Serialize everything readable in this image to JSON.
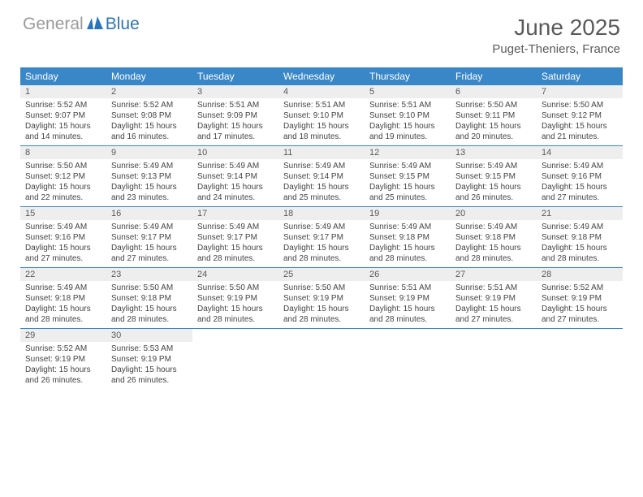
{
  "logo": {
    "word1": "General",
    "word2": "Blue",
    "icon_color": "#2a74b8",
    "text_gray": "#9a9a9a"
  },
  "title": "June 2025",
  "location": "Puget-Theniers, France",
  "header_bg": "#3a87c8",
  "daynum_bg": "#eeeeee",
  "border_color": "#3a87c8",
  "day_names": [
    "Sunday",
    "Monday",
    "Tuesday",
    "Wednesday",
    "Thursday",
    "Friday",
    "Saturday"
  ],
  "days": [
    {
      "n": "1",
      "sr": "5:52 AM",
      "ss": "9:07 PM",
      "dl": "15 hours and 14 minutes."
    },
    {
      "n": "2",
      "sr": "5:52 AM",
      "ss": "9:08 PM",
      "dl": "15 hours and 16 minutes."
    },
    {
      "n": "3",
      "sr": "5:51 AM",
      "ss": "9:09 PM",
      "dl": "15 hours and 17 minutes."
    },
    {
      "n": "4",
      "sr": "5:51 AM",
      "ss": "9:10 PM",
      "dl": "15 hours and 18 minutes."
    },
    {
      "n": "5",
      "sr": "5:51 AM",
      "ss": "9:10 PM",
      "dl": "15 hours and 19 minutes."
    },
    {
      "n": "6",
      "sr": "5:50 AM",
      "ss": "9:11 PM",
      "dl": "15 hours and 20 minutes."
    },
    {
      "n": "7",
      "sr": "5:50 AM",
      "ss": "9:12 PM",
      "dl": "15 hours and 21 minutes."
    },
    {
      "n": "8",
      "sr": "5:50 AM",
      "ss": "9:12 PM",
      "dl": "15 hours and 22 minutes."
    },
    {
      "n": "9",
      "sr": "5:49 AM",
      "ss": "9:13 PM",
      "dl": "15 hours and 23 minutes."
    },
    {
      "n": "10",
      "sr": "5:49 AM",
      "ss": "9:14 PM",
      "dl": "15 hours and 24 minutes."
    },
    {
      "n": "11",
      "sr": "5:49 AM",
      "ss": "9:14 PM",
      "dl": "15 hours and 25 minutes."
    },
    {
      "n": "12",
      "sr": "5:49 AM",
      "ss": "9:15 PM",
      "dl": "15 hours and 25 minutes."
    },
    {
      "n": "13",
      "sr": "5:49 AM",
      "ss": "9:15 PM",
      "dl": "15 hours and 26 minutes."
    },
    {
      "n": "14",
      "sr": "5:49 AM",
      "ss": "9:16 PM",
      "dl": "15 hours and 27 minutes."
    },
    {
      "n": "15",
      "sr": "5:49 AM",
      "ss": "9:16 PM",
      "dl": "15 hours and 27 minutes."
    },
    {
      "n": "16",
      "sr": "5:49 AM",
      "ss": "9:17 PM",
      "dl": "15 hours and 27 minutes."
    },
    {
      "n": "17",
      "sr": "5:49 AM",
      "ss": "9:17 PM",
      "dl": "15 hours and 28 minutes."
    },
    {
      "n": "18",
      "sr": "5:49 AM",
      "ss": "9:17 PM",
      "dl": "15 hours and 28 minutes."
    },
    {
      "n": "19",
      "sr": "5:49 AM",
      "ss": "9:18 PM",
      "dl": "15 hours and 28 minutes."
    },
    {
      "n": "20",
      "sr": "5:49 AM",
      "ss": "9:18 PM",
      "dl": "15 hours and 28 minutes."
    },
    {
      "n": "21",
      "sr": "5:49 AM",
      "ss": "9:18 PM",
      "dl": "15 hours and 28 minutes."
    },
    {
      "n": "22",
      "sr": "5:49 AM",
      "ss": "9:18 PM",
      "dl": "15 hours and 28 minutes."
    },
    {
      "n": "23",
      "sr": "5:50 AM",
      "ss": "9:18 PM",
      "dl": "15 hours and 28 minutes."
    },
    {
      "n": "24",
      "sr": "5:50 AM",
      "ss": "9:19 PM",
      "dl": "15 hours and 28 minutes."
    },
    {
      "n": "25",
      "sr": "5:50 AM",
      "ss": "9:19 PM",
      "dl": "15 hours and 28 minutes."
    },
    {
      "n": "26",
      "sr": "5:51 AM",
      "ss": "9:19 PM",
      "dl": "15 hours and 28 minutes."
    },
    {
      "n": "27",
      "sr": "5:51 AM",
      "ss": "9:19 PM",
      "dl": "15 hours and 27 minutes."
    },
    {
      "n": "28",
      "sr": "5:52 AM",
      "ss": "9:19 PM",
      "dl": "15 hours and 27 minutes."
    },
    {
      "n": "29",
      "sr": "5:52 AM",
      "ss": "9:19 PM",
      "dl": "15 hours and 26 minutes."
    },
    {
      "n": "30",
      "sr": "5:53 AM",
      "ss": "9:19 PM",
      "dl": "15 hours and 26 minutes."
    }
  ],
  "labels": {
    "sunrise": "Sunrise: ",
    "sunset": "Sunset: ",
    "daylight": "Daylight: "
  },
  "layout": {
    "cols": 7,
    "start_col": 0,
    "total_cells": 35
  }
}
